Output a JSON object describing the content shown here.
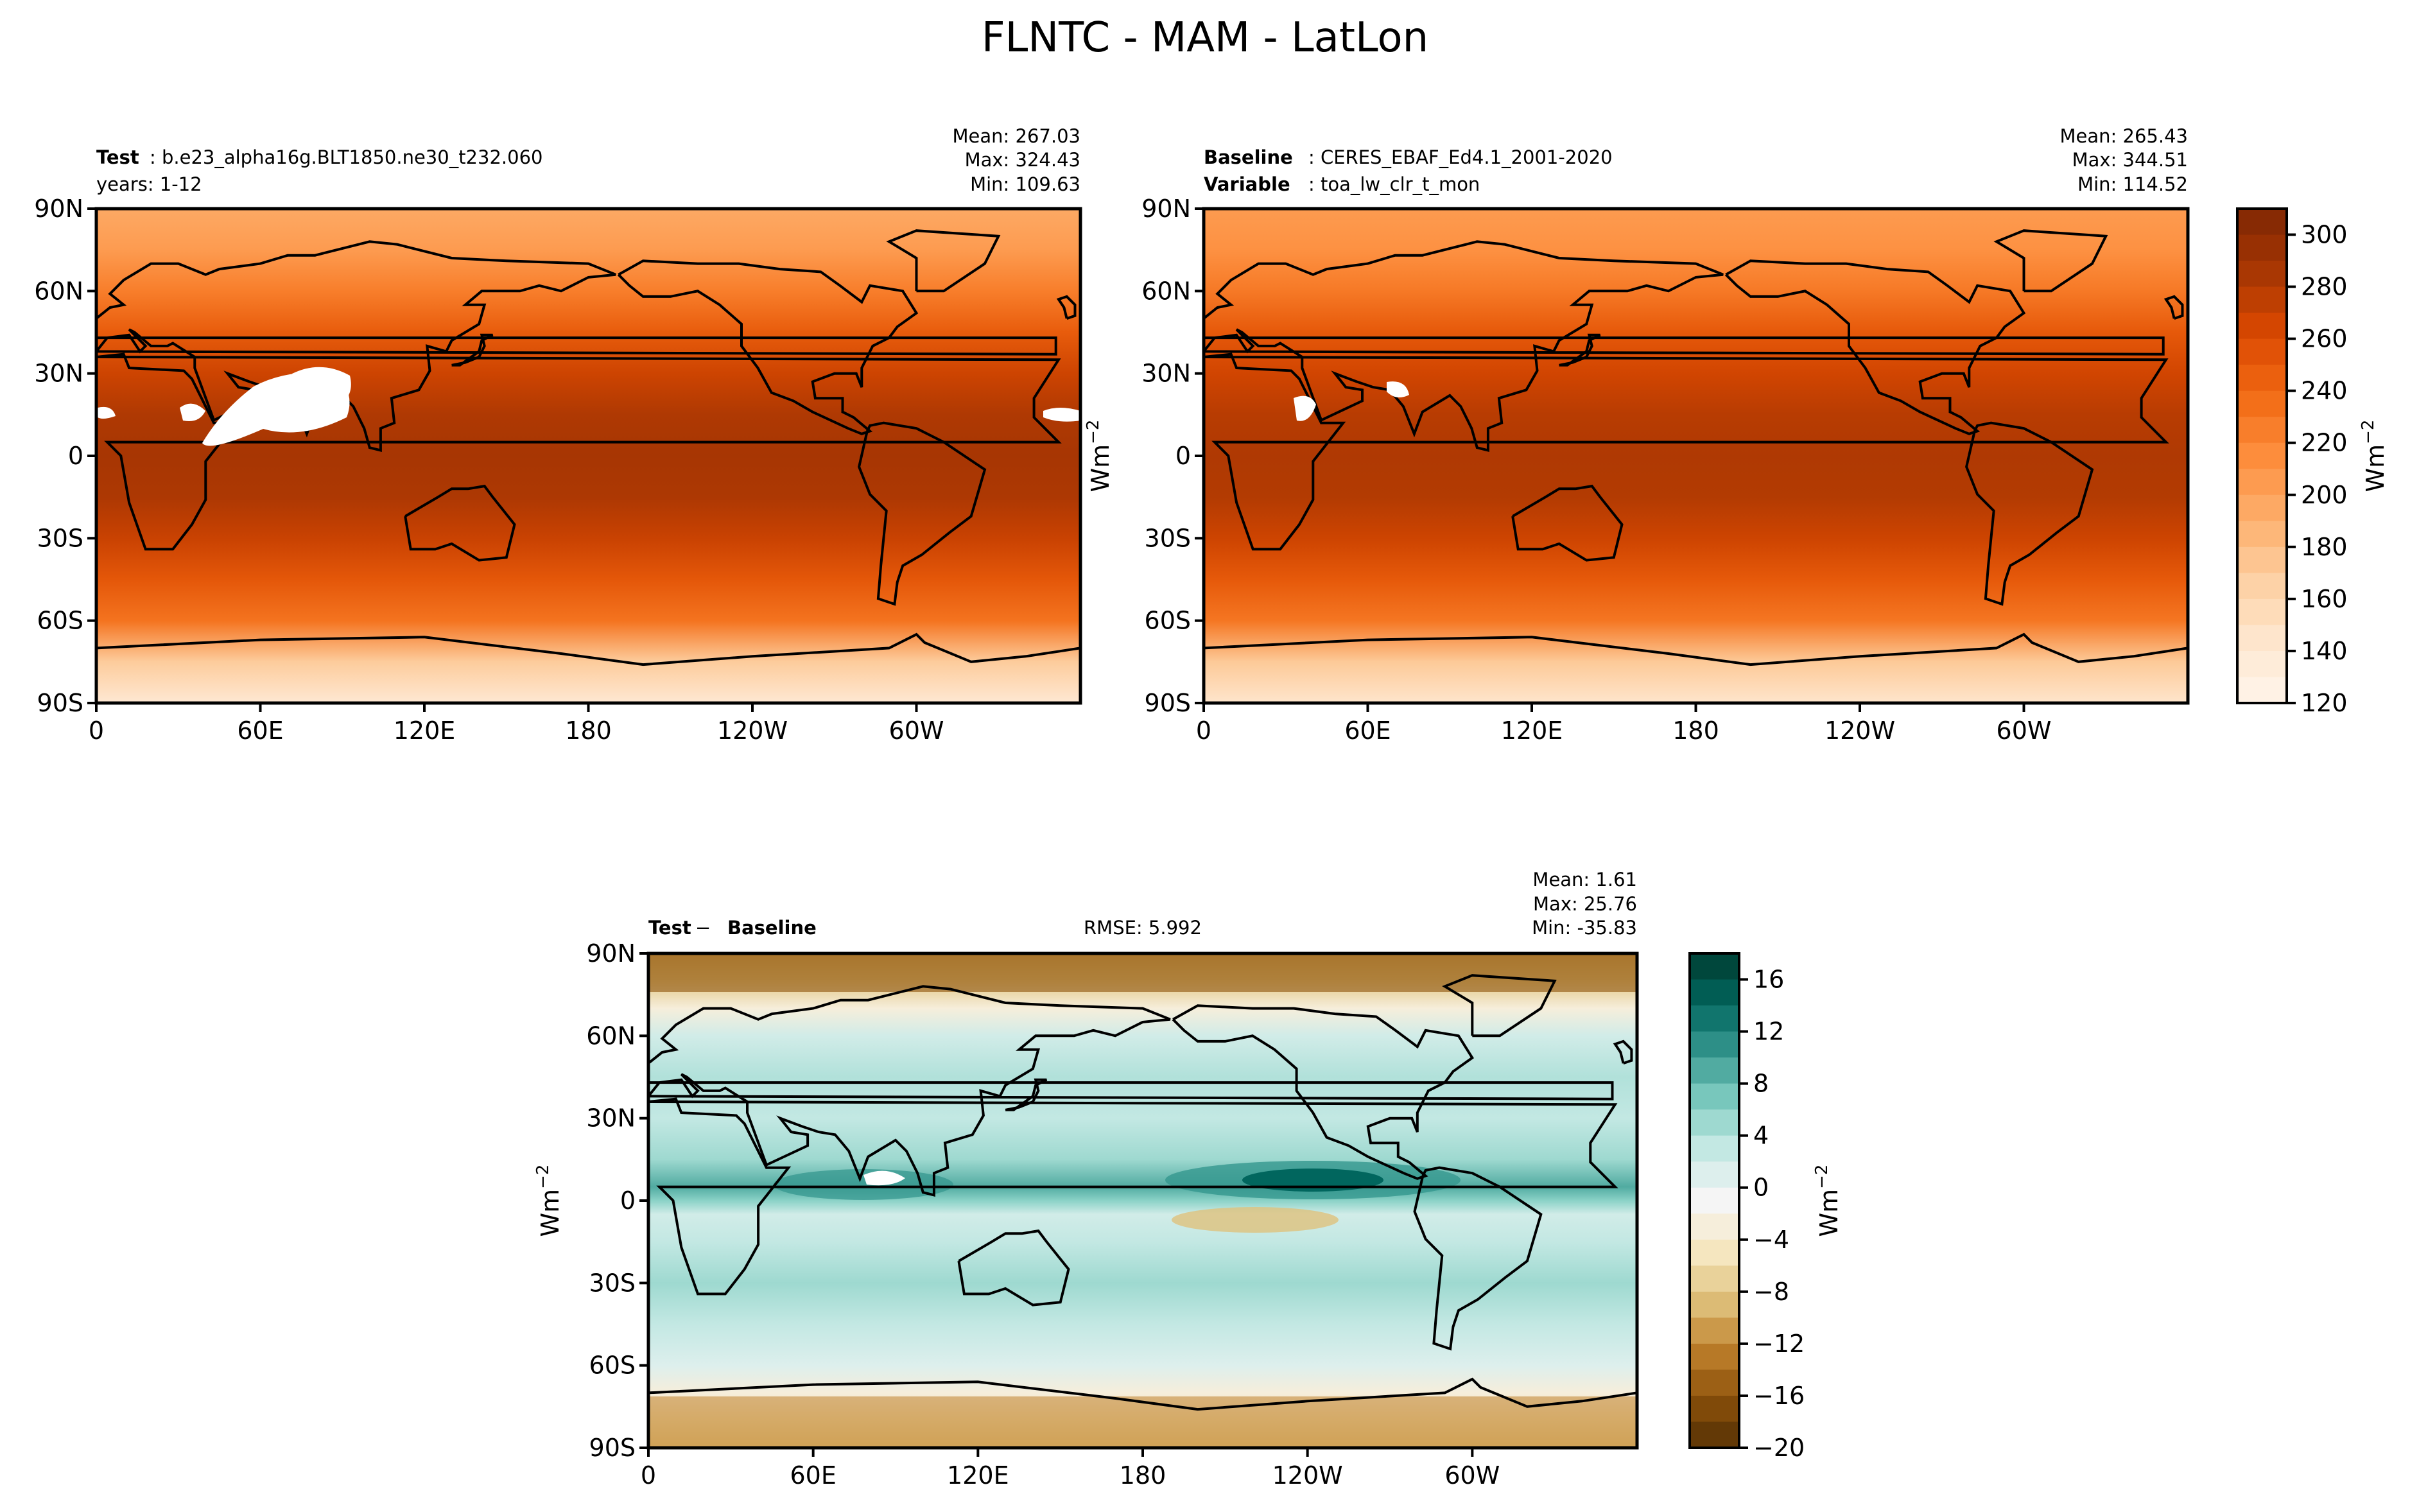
{
  "title": "FLNTC - MAM - LatLon",
  "colors": {
    "abs_scale": [
      "#fff5eb",
      "#fee6ce",
      "#fdd0a2",
      "#fdae6b",
      "#fd8d3c",
      "#f16913",
      "#d94801",
      "#a63603",
      "#7f2704"
    ],
    "diff_scale": [
      "#543005",
      "#8c510a",
      "#bf812d",
      "#dfc27d",
      "#f6e8c3",
      "#f5f5f5",
      "#c7eae5",
      "#80cdc1",
      "#35978f",
      "#01665e",
      "#003c30"
    ],
    "land_outline": "#000000"
  },
  "chart_data": [
    {
      "type": "heatmap",
      "name": "test-map",
      "label_bold": "Test",
      "label_text": ": b.e23_alpha16g.BLT1850.ne30_t232.060",
      "label_line2": "years: 1-12",
      "stats": [
        "Mean: 267.03",
        "Max: 324.43",
        "Min: 109.63"
      ],
      "xticks": [
        "0",
        "60E",
        "120E",
        "180",
        "120W",
        "60W"
      ],
      "yticks": [
        "90N",
        "60N",
        "30N",
        "0",
        "30S",
        "60S",
        "90S"
      ],
      "xlim": [
        0,
        360
      ],
      "ylim": [
        -90,
        90
      ],
      "zonal_profile": {
        "lat": [
          90,
          75,
          60,
          45,
          30,
          15,
          0,
          -15,
          -30,
          -45,
          -60,
          -75,
          -90
        ],
        "value": [
          195,
          205,
          225,
          248,
          268,
          282,
          286,
          283,
          270,
          252,
          232,
          170,
          140
        ]
      }
    },
    {
      "type": "heatmap",
      "name": "baseline-map",
      "label_bold": "Baseline",
      "label_text": ": CERES_EBAF_Ed4.1_2001-2020",
      "label_bold2": "Variable",
      "label_text2": ": toa_lw_clr_t_mon",
      "stats": [
        "Mean: 265.43",
        "Max: 344.51",
        "Min: 114.52"
      ],
      "xticks": [
        "0",
        "60E",
        "120E",
        "180",
        "120W",
        "60W"
      ],
      "yticks": [
        "90N",
        "60N",
        "30N",
        "0",
        "30S",
        "60S",
        "90S"
      ],
      "xlim": [
        0,
        360
      ],
      "ylim": [
        -90,
        90
      ],
      "zonal_profile": {
        "lat": [
          90,
          75,
          60,
          45,
          30,
          15,
          0,
          -15,
          -30,
          -45,
          -60,
          -75,
          -90
        ],
        "value": [
          205,
          212,
          228,
          250,
          266,
          278,
          282,
          280,
          268,
          250,
          230,
          172,
          145
        ]
      }
    },
    {
      "type": "heatmap",
      "name": "difference-map",
      "label_bold": "Test",
      "label_minus": " − ",
      "label_bold2": "Baseline",
      "rmse": "RMSE: 5.992",
      "stats": [
        "Mean:  1.61",
        "Max: 25.76",
        "Min: -35.83"
      ],
      "xticks": [
        "0",
        "60E",
        "120E",
        "180",
        "120W",
        "60W"
      ],
      "yticks": [
        "90N",
        "60N",
        "30N",
        "0",
        "30S",
        "60S",
        "90S"
      ],
      "xlim": [
        0,
        360
      ],
      "ylim": [
        -90,
        90
      ],
      "zonal_profile": {
        "lat": [
          90,
          80,
          70,
          60,
          45,
          30,
          15,
          5,
          0,
          -5,
          -15,
          -30,
          -45,
          -60,
          -70,
          -80,
          -90
        ],
        "value": [
          -10,
          -8,
          -3,
          2,
          4,
          3,
          5,
          9,
          6,
          2,
          3,
          5,
          3,
          1,
          -3,
          -6,
          -8
        ]
      }
    }
  ],
  "colorbar_abs": {
    "ticks": [
      "300",
      "280",
      "260",
      "240",
      "220",
      "200",
      "180",
      "160",
      "140",
      "120"
    ],
    "range": [
      120,
      310
    ],
    "unit": "Wm",
    "unit_exp": "−2"
  },
  "colorbar_diff": {
    "ticks": [
      "16",
      "12",
      "8",
      "4",
      "0",
      "−4",
      "−8",
      "−12",
      "−16",
      "−20"
    ],
    "range": [
      -20,
      18
    ],
    "unit": "Wm",
    "unit_exp": "−2"
  },
  "ylabel_unit": "Wm",
  "ylabel_exp": "−2"
}
